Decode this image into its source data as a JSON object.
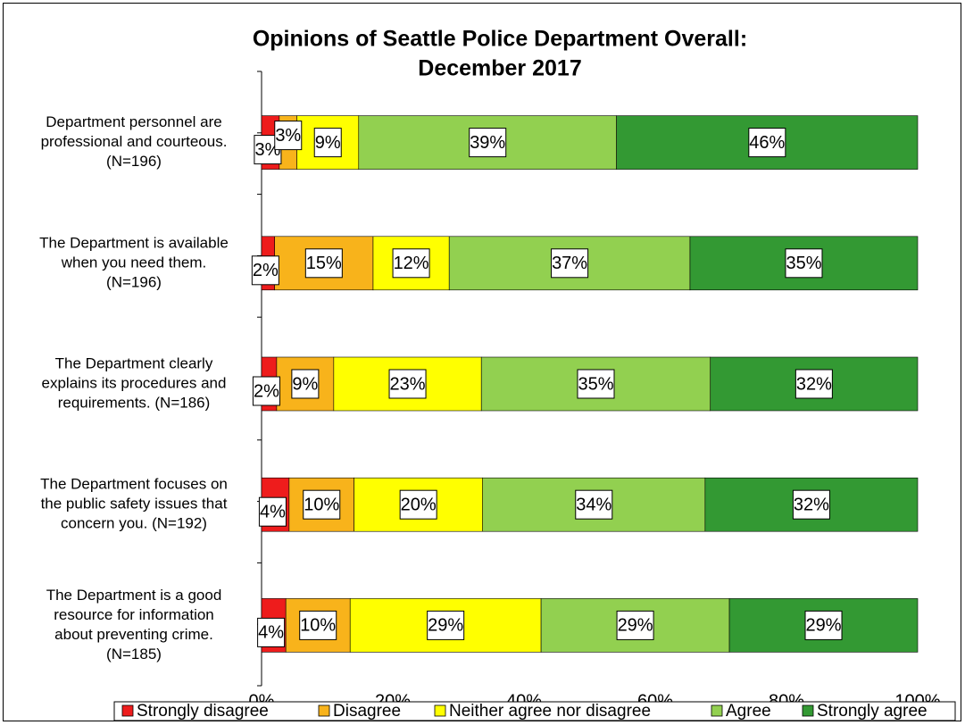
{
  "chart_data": {
    "type": "stacked_barh",
    "title": [
      "Opinions of Seattle Police Department Overall:",
      "December 2017"
    ],
    "categories": [
      [
        "Department personnel are",
        "professional and courteous.",
        "(N=196)"
      ],
      [
        "The Department is available",
        "when you need them.",
        "(N=196)"
      ],
      [
        "The Department clearly",
        "explains its procedures and",
        "requirements. (N=186)"
      ],
      [
        "The Department focuses on",
        "the public safety issues that",
        "concern you. (N=192)"
      ],
      [
        "The Department is a good",
        "resource for information",
        "about preventing crime.",
        "(N=185)"
      ]
    ],
    "series": [
      {
        "name": "Strongly disagree",
        "color": "#ee1c1c",
        "values": [
          2.7,
          2.0,
          2.3,
          4.2,
          3.7
        ],
        "value_labels": [
          "3%",
          "2%",
          "2%",
          "4%",
          "4%"
        ]
      },
      {
        "name": "Disagree",
        "color": "#f8b31b",
        "values": [
          2.7,
          15.0,
          8.7,
          9.9,
          9.8
        ],
        "value_labels": [
          "3%",
          "15%",
          "9%",
          "10%",
          "10%"
        ]
      },
      {
        "name": "Neither agree nor disagree",
        "color": "#ffff00",
        "values": [
          9.4,
          11.6,
          22.5,
          19.6,
          29.1
        ],
        "value_labels": [
          "9%",
          "12%",
          "23%",
          "20%",
          "29%"
        ]
      },
      {
        "name": "Agree",
        "color": "#92d050",
        "values": [
          39.3,
          36.7,
          34.9,
          33.9,
          28.7
        ],
        "value_labels": [
          "39%",
          "37%",
          "35%",
          "34%",
          "29%"
        ]
      },
      {
        "name": "Strongly agree",
        "color": "#339933",
        "values": [
          45.9,
          34.7,
          31.6,
          32.4,
          28.7
        ],
        "value_labels": [
          "46%",
          "35%",
          "32%",
          "32%",
          "29%"
        ]
      }
    ],
    "xlim": [
      0,
      100
    ],
    "xticks": [
      {
        "value": 0,
        "label": "0%"
      },
      {
        "value": 20,
        "label": "20%"
      },
      {
        "value": 40,
        "label": "40%"
      },
      {
        "value": 60,
        "label": "60%"
      },
      {
        "value": 80,
        "label": "80%"
      },
      {
        "value": 100,
        "label": "100%"
      }
    ],
    "legend": "bottom"
  }
}
